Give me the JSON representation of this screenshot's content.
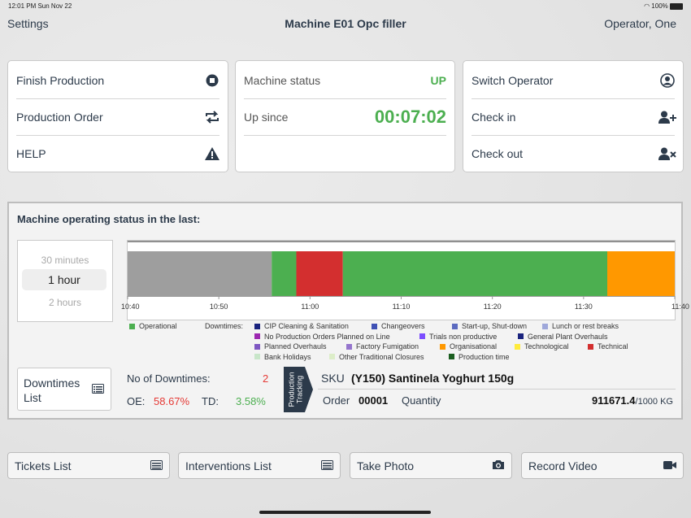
{
  "status_bar": {
    "time_date": "12:01 PM   Sun Nov 22",
    "battery": "100%"
  },
  "header": {
    "settings": "Settings",
    "title": "Machine E01 Opc filler",
    "operator": "Operator, One"
  },
  "left_card": {
    "finish_production": "Finish Production",
    "production_order": "Production Order",
    "help": "HELP"
  },
  "status_card": {
    "machine_status_label": "Machine status",
    "machine_status_value": "UP",
    "up_since_label": "Up since",
    "up_since_value": "00:07:02"
  },
  "right_card": {
    "switch_operator": "Switch Operator",
    "check_in": "Check in",
    "check_out": "Check out"
  },
  "operating_status": {
    "title": "Machine operating status in the last:",
    "picker": {
      "above": "30 minutes",
      "selected": "1 hour",
      "below": "2 hours"
    }
  },
  "chart_data": {
    "type": "bar",
    "xlim": [
      "10:40",
      "11:40"
    ],
    "ticks": [
      "10:40",
      "10:50",
      "11:00",
      "11:10",
      "11:20",
      "11:30",
      "11:40"
    ],
    "segments": [
      {
        "start": 0,
        "end": 15.8,
        "color": "#9e9e9e"
      },
      {
        "start": 15.8,
        "end": 18.5,
        "color": "#4caf50"
      },
      {
        "start": 18.5,
        "end": 23.6,
        "color": "#d32f2f"
      },
      {
        "start": 23.6,
        "end": 52.6,
        "color": "#4caf50"
      },
      {
        "start": 52.6,
        "end": 60,
        "color": "#ff9800"
      }
    ]
  },
  "legend": {
    "operational": {
      "label": "Operational",
      "color": "#4caf50"
    },
    "downtimes_label": "Downtimes:",
    "items": [
      {
        "label": "CIP Cleaning & Sanitation",
        "color": "#1a237e"
      },
      {
        "label": "Changeovers",
        "color": "#3f51b5"
      },
      {
        "label": "Start-up, Shut-down",
        "color": "#5c6bc0"
      },
      {
        "label": "Lunch or rest breaks",
        "color": "#9fa8da"
      },
      {
        "label": "No Production Orders Planned on Line",
        "color": "#9c27b0"
      },
      {
        "label": "Trials non productive",
        "color": "#7c4dff"
      },
      {
        "label": "General Plant Overhauls",
        "color": "#1a237e"
      },
      {
        "label": "Planned Overhauls",
        "color": "#7e57c2"
      },
      {
        "label": "Factory Fumigation",
        "color": "#9575cd"
      },
      {
        "label": "Organisational",
        "color": "#ff9800"
      },
      {
        "label": "Technological",
        "color": "#ffeb3b"
      },
      {
        "label": "Technical",
        "color": "#d32f2f"
      },
      {
        "label": "Bank Holidays",
        "color": "#c8e6c9"
      },
      {
        "label": "Other Traditional Closures",
        "color": "#dcedc8"
      },
      {
        "label": "Production time",
        "color": "#1b5e20"
      }
    ]
  },
  "downtimes_button": "Downtimes List",
  "stats": {
    "no_downtimes_label": "No of Downtimes:",
    "no_downtimes_value": "2",
    "oe_label": "OE:",
    "oe_value": "58.67%",
    "td_label": "TD:",
    "td_value": "3.58%"
  },
  "production_tracking": {
    "tag": "Production Tracking",
    "sku_label": "SKU",
    "sku_value": "(Y150) Santinela Yoghurt 150g",
    "order_label": "Order",
    "order_value": "00001",
    "quantity_label": "Quantity",
    "quantity_value": "911671.4",
    "quantity_target": "/1000 KG"
  },
  "bottom_buttons": {
    "tickets": "Tickets List",
    "interventions": "Interventions List",
    "photo": "Take Photo",
    "video": "Record Video"
  }
}
